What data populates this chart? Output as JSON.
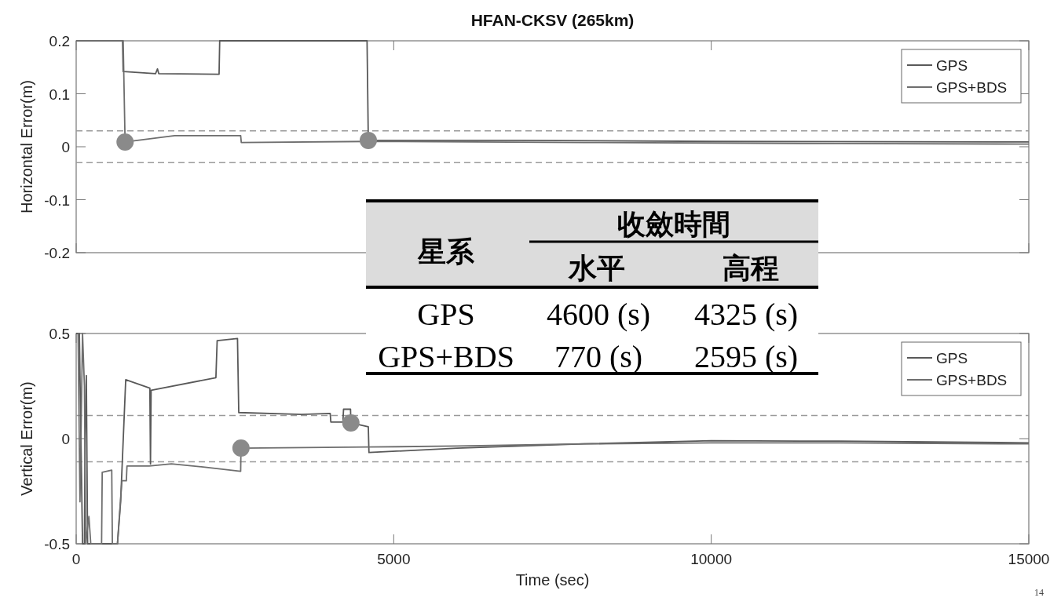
{
  "chart_data": [
    {
      "type": "line",
      "title": "HFAN-CKSV (265km)",
      "ylabel": "Horizontal Error(m)",
      "xlim": [
        0,
        15000
      ],
      "ylim": [
        -0.2,
        0.2
      ],
      "xticks": [
        0,
        5000,
        10000,
        15000
      ],
      "yticks": [
        -0.2,
        -0.1,
        0,
        0.1,
        0.2
      ],
      "tick_labels": "y",
      "legend": "top right",
      "series": [
        {
          "name": "GPS",
          "color": "#595959",
          "x": [
            0,
            730,
            740,
            1250,
            1280,
            1300,
            2250,
            2260,
            4580,
            4600,
            7000,
            10000,
            15000
          ],
          "values": [
            0.2,
            0.2,
            0.142,
            0.138,
            0.147,
            0.138,
            0.137,
            0.2,
            0.2,
            0.012,
            0.012,
            0.01,
            0.009
          ]
        },
        {
          "name": "GPS+BDS",
          "color": "#6e6e6e",
          "x": [
            0,
            740,
            770,
            1550,
            2590,
            2600,
            4600,
            8000,
            12000,
            15000
          ],
          "values": [
            0.2,
            0.2,
            0.009,
            0.021,
            0.021,
            0.008,
            0.01,
            0.008,
            0.006,
            0.005
          ]
        },
        {
          "type": "scatter",
          "marker": "circle",
          "color": "#8a8a8a",
          "x": [
            770,
            4600
          ],
          "values": [
            0.009,
            0.012
          ]
        }
      ],
      "ref_lines": [
        {
          "axis": "y",
          "value": 0.03,
          "line_style": "dashed",
          "color": "#9a9a9a"
        },
        {
          "axis": "y",
          "value": -0.03,
          "line_style": "dashed",
          "color": "#9a9a9a"
        }
      ]
    },
    {
      "type": "line",
      "xlabel": "Time (sec)",
      "ylabel": "Vertical Error(m)",
      "xlim": [
        0,
        15000
      ],
      "ylim": [
        -0.5,
        0.5
      ],
      "xticks": [
        0,
        5000,
        10000,
        15000
      ],
      "yticks": [
        -0.5,
        0,
        0.5
      ],
      "legend": "top right",
      "annotations": [
        "14"
      ],
      "series": [
        {
          "name": "GPS",
          "color": "#595959",
          "x": [
            0,
            50,
            100,
            130,
            140,
            160,
            180,
            650,
            700,
            780,
            1160,
            1170,
            1180,
            2200,
            2220,
            2540,
            2560,
            3550,
            4000,
            4010,
            4200,
            4210,
            4320,
            4325,
            4600,
            4610,
            6000,
            8000,
            10000,
            12000,
            15000
          ],
          "values": [
            0.5,
            0.5,
            -0.5,
            -0.5,
            0.0,
            0.3,
            -0.5,
            -0.5,
            -0.3,
            0.28,
            0.24,
            -0.12,
            0.23,
            0.29,
            0.466,
            0.476,
            0.124,
            0.115,
            0.12,
            0.079,
            0.079,
            0.14,
            0.14,
            0.075,
            0.056,
            -0.066,
            -0.045,
            -0.025,
            -0.01,
            -0.012,
            -0.02
          ]
        },
        {
          "name": "GPS+BDS",
          "color": "#6e6e6e",
          "x": [
            30,
            60,
            100,
            130,
            150,
            200,
            230,
            400,
            410,
            560,
            570,
            650,
            680,
            720,
            790,
            800,
            1150,
            1500,
            2000,
            2590,
            2595,
            4600,
            6000,
            8000,
            10000,
            12000,
            15000
          ],
          "values": [
            0.5,
            -0.3,
            0.5,
            0.25,
            -0.5,
            -0.37,
            -0.5,
            -0.5,
            -0.16,
            -0.15,
            -0.5,
            -0.5,
            -0.37,
            -0.2,
            -0.2,
            -0.13,
            -0.13,
            -0.12,
            -0.135,
            -0.155,
            -0.045,
            -0.04,
            -0.035,
            -0.025,
            -0.02,
            -0.02,
            -0.025
          ]
        },
        {
          "type": "scatter",
          "marker": "circle",
          "color": "#8a8a8a",
          "x": [
            2595,
            4325
          ],
          "values": [
            -0.045,
            0.075
          ]
        }
      ],
      "ref_lines": [
        {
          "axis": "y",
          "value": 0.11,
          "line_style": "dashed",
          "color": "#9a9a9a"
        },
        {
          "axis": "y",
          "value": -0.11,
          "line_style": "dashed",
          "color": "#9a9a9a"
        }
      ]
    },
    {
      "type": "other",
      "annotations": [
        "星系",
        "收斂時間",
        "水平",
        "高程",
        "GPS",
        "4600 (s)",
        "4325 (s)",
        "GPS+BDS",
        "770 (s)",
        "2595 (s)"
      ]
    }
  ]
}
